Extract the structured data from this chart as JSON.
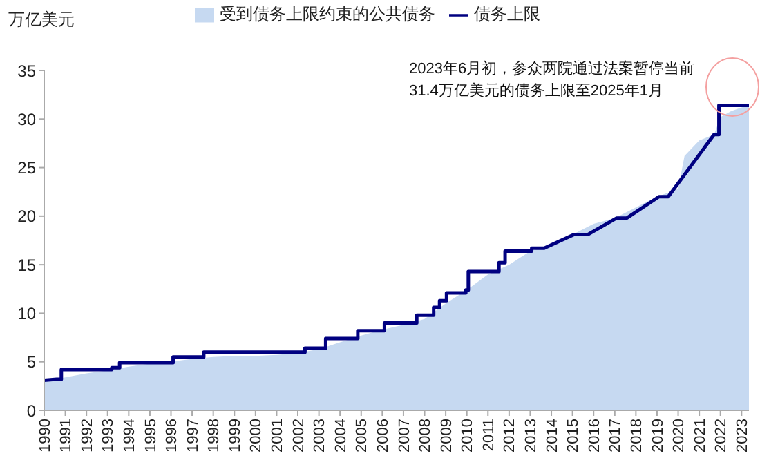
{
  "chart_data": {
    "type": "area",
    "ylabel": "万亿美元",
    "legend": "top",
    "annotations": [
      "2023年6月初，参众两院通过法案暂停当前31.4万亿美元的债务上限至2025年1月"
    ],
    "xlim": [
      1990,
      2023.35
    ],
    "xticks": [
      1990,
      1991,
      1992,
      1993,
      1994,
      1995,
      1996,
      1997,
      1998,
      1999,
      2000,
      2001,
      2002,
      2003,
      2004,
      2005,
      2006,
      2007,
      2008,
      2009,
      2010,
      2011,
      2012,
      2013,
      2014,
      2015,
      2016,
      2017,
      2018,
      2019,
      2020,
      2021,
      2022,
      2023
    ],
    "ylim": [
      0,
      35
    ],
    "yticks": [
      0,
      5,
      10,
      15,
      20,
      25,
      30,
      35
    ],
    "grid": false,
    "series": [
      {
        "name": "受到债务上限约束的公共债务",
        "color": "#c6d9f1",
        "x": [
          1990,
          1991,
          1992,
          1993,
          1994,
          1995,
          1996,
          1997,
          1998,
          1999,
          2000,
          2001,
          2002,
          2003,
          2004,
          2005,
          2006,
          2007,
          2008,
          2009,
          2010,
          2011,
          2012,
          2013,
          2014,
          2015,
          2016,
          2017,
          2018,
          2019,
          2020,
          2020.3,
          2021,
          2021.7,
          2022,
          2022.5,
          2023,
          2023.35
        ],
        "values": [
          3.0,
          3.4,
          3.8,
          4.1,
          4.5,
          4.8,
          5.0,
          5.3,
          5.5,
          5.6,
          5.6,
          5.7,
          5.9,
          6.3,
          7.0,
          7.7,
          8.3,
          8.8,
          9.4,
          11.0,
          12.4,
          14.0,
          15.0,
          16.4,
          17.0,
          18.1,
          19.2,
          19.8,
          20.9,
          22.0,
          22.8,
          26.2,
          27.8,
          28.4,
          30.2,
          30.8,
          31.2,
          31.4
        ]
      },
      {
        "name": "债务上限",
        "type": "line",
        "color": "#000080",
        "x": [
          1990,
          1990.59,
          1990.81,
          1990.81,
          1993.2,
          1993.2,
          1993.57,
          1993.57,
          1996.1,
          1996.1,
          1997.55,
          1997.55,
          2002.34,
          2002.34,
          2003.32,
          2003.32,
          2004.84,
          2004.84,
          2006.1,
          2006.1,
          2007.63,
          2007.63,
          2008.43,
          2008.43,
          2008.71,
          2008.71,
          2009.04,
          2009.04,
          2009.95,
          2009.95,
          2010.07,
          2010.07,
          2011.52,
          2011.52,
          2011.81,
          2011.81,
          2013.07,
          2013.07,
          2013.66,
          2015.07,
          2015.72,
          2017.09,
          2017.57,
          2019.09,
          2019.53,
          2021.7,
          2021.93,
          2021.93,
          2023.35
        ],
        "values": [
          3.1,
          3.2,
          3.2,
          4.2,
          4.2,
          4.4,
          4.4,
          4.9,
          4.9,
          5.5,
          5.5,
          6.0,
          6.0,
          6.4,
          6.4,
          7.4,
          7.4,
          8.2,
          8.2,
          9.0,
          9.0,
          9.8,
          9.8,
          10.6,
          10.6,
          11.3,
          11.3,
          12.1,
          12.1,
          12.4,
          12.4,
          14.3,
          14.3,
          15.2,
          15.2,
          16.4,
          16.4,
          16.7,
          16.7,
          18.1,
          18.1,
          19.8,
          19.8,
          22.0,
          22.0,
          28.4,
          28.4,
          31.4,
          31.4
        ]
      }
    ]
  }
}
